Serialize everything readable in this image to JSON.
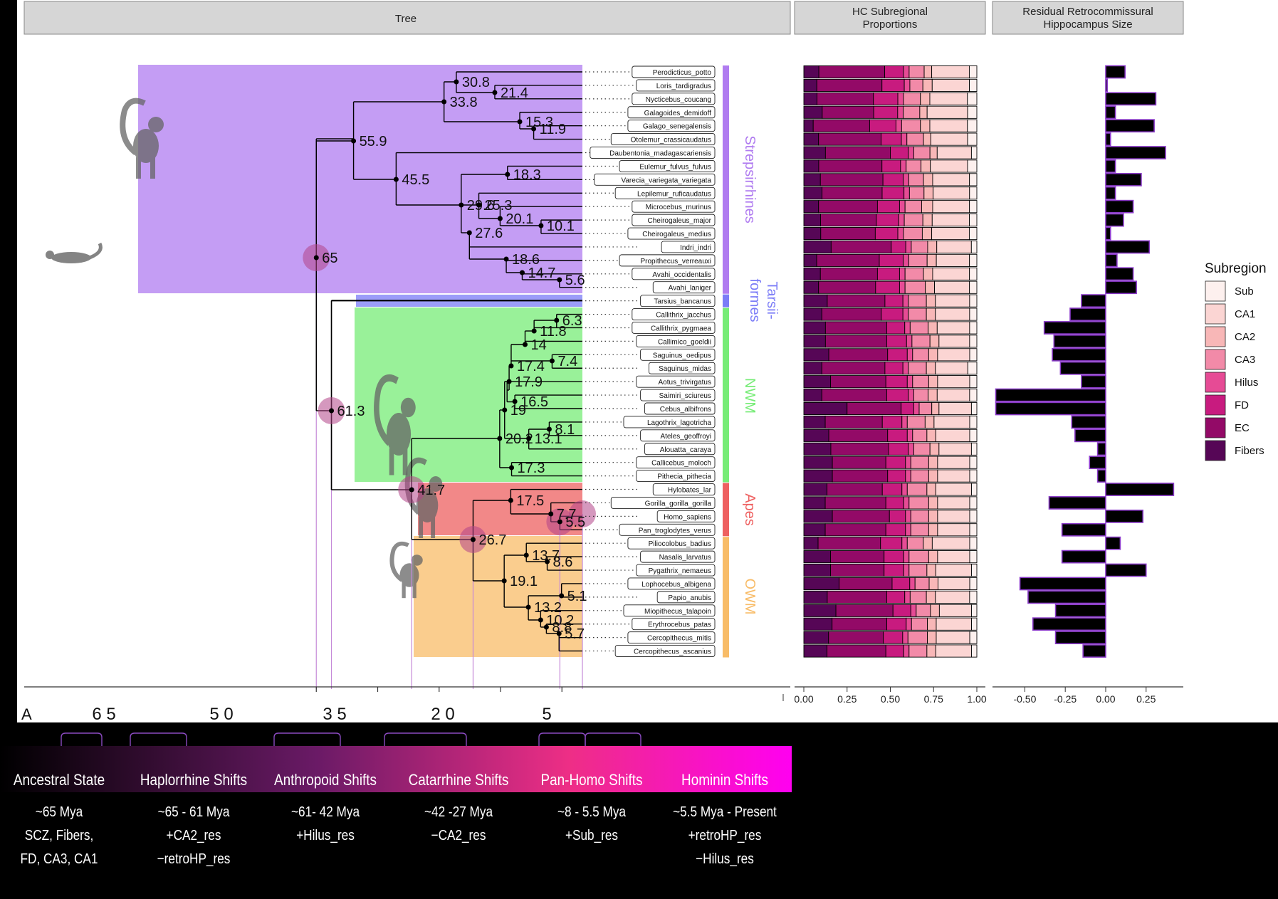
{
  "facet_titles": {
    "tree": "Tree",
    "proportions": "HC Subregional Proportions",
    "residual": "Residual Retrocommissural Hippocampus Size"
  },
  "time_axis": {
    "ticks": [
      "6 5",
      "5 0",
      "3 5",
      "2 0",
      "5"
    ],
    "edge_label": "A"
  },
  "clades": [
    {
      "name": "Strepsirrhines",
      "color": "#b07cf0"
    },
    {
      "name": "Tarsii-formes",
      "color": "#7b7cf7"
    },
    {
      "name": "NWM",
      "color": "#77ec77"
    },
    {
      "name": "Apes",
      "color": "#ee6060"
    },
    {
      "name": "OWM",
      "color": "#f8bc68"
    }
  ],
  "tips": [
    "Perodicticus_potto",
    "Loris_tardigradus",
    "Nycticebus_coucang",
    "Galagoides_demidoff",
    "Galago_senegalensis",
    "Otolemur_crassicaudatus",
    "Daubentonia_madagascariensis",
    "Eulemur_fulvus_fulvus",
    "Varecia_variegata_variegata",
    "Lepilemur_ruficaudatus",
    "Microcebus_murinus",
    "Cheirogaleus_major",
    "Cheirogaleus_medius",
    "Indri_indri",
    "Propithecus_verreauxi",
    "Avahi_occidentalis",
    "Avahi_laniger",
    "Tarsius_bancanus",
    "Callithrix_jacchus",
    "Callithrix_pygmaea",
    "Callimico_goeldii",
    "Saguinus_oedipus",
    "Saguinus_midas",
    "Aotus_trivirgatus",
    "Saimiri_sciureus",
    "Cebus_albifrons",
    "Lagothrix_lagotricha",
    "Ateles_geoffroyi",
    "Alouatta_caraya",
    "Callicebus_moloch",
    "Pithecia_pithecia",
    "Hylobates_lar",
    "Gorilla_gorilla_gorilla",
    "Homo_sapiens",
    "Pan_troglodytes_verus",
    "Piliocolobus_badius",
    "Nasalis_larvatus",
    "Pygathrix_nemaeus",
    "Lophocebus_albigena",
    "Papio_anubis",
    "Miopithecus_talapoin",
    "Erythrocebus_patas",
    "Cercopithecus_mitis",
    "Cercopithecus_ascanius"
  ],
  "node_ages": [
    "65",
    "55.9",
    "33.8",
    "30.8",
    "21.4",
    "15.3",
    "11.9",
    "45.5",
    "18.3",
    "29.6",
    "25.3",
    "20.1",
    "10.1",
    "27.6",
    "18.6",
    "14.7",
    "5.6",
    "61.3",
    "41.7",
    "20.2",
    "19",
    "17.9",
    "17.4",
    "14",
    "11.8",
    "6.3",
    "7.4",
    "16.5",
    "13.1",
    "8.1",
    "17.3",
    "26.7",
    "17.5",
    "7.7",
    "5.5",
    "19.1",
    "13.7",
    "8.6",
    "13.2",
    "5.1",
    "10.2",
    "8.8",
    "5.7"
  ],
  "shifts": [
    {
      "title": "Ancestral State",
      "lines": [
        "~65 Mya",
        "SCZ, Fibers,",
        "FD, CA3, CA1"
      ]
    },
    {
      "title": "Haplorrhine Shifts",
      "lines": [
        "~65 - 61 Mya",
        "+CA2_res",
        "−retroHP_res"
      ]
    },
    {
      "title": "Anthropoid Shifts",
      "lines": [
        "~61- 42 Mya",
        "+Hilus_res"
      ]
    },
    {
      "title": "Catarrhine Shifts",
      "lines": [
        "~42 -27 Mya",
        "−CA2_res"
      ]
    },
    {
      "title": "Pan-Homo Shifts",
      "lines": [
        "~8 - 5.5 Mya",
        "+Sub_res"
      ]
    },
    {
      "title": "Hominin Shifts",
      "lines": [
        "~5.5 Mya - Present",
        "+retroHP_res",
        "−Hilus_res"
      ]
    }
  ],
  "legend": {
    "title": "Subregion",
    "items": [
      {
        "label": "Sub",
        "color": "#fdf0ee"
      },
      {
        "label": "CA1",
        "color": "#fbd5d3"
      },
      {
        "label": "CA2",
        "color": "#f8b7b7"
      },
      {
        "label": "CA3",
        "color": "#f28aa8"
      },
      {
        "label": "Hilus",
        "color": "#e64b95"
      },
      {
        "label": "FD",
        "color": "#c81b7f"
      },
      {
        "label": "EC",
        "color": "#930a67"
      },
      {
        "label": "Fibers",
        "color": "#560656"
      }
    ]
  },
  "chart_data": [
    {
      "type": "bar",
      "title": "HC Subregional Proportions",
      "stacked": true,
      "orientation": "horizontal",
      "xlim": [
        0,
        1
      ],
      "xticks": [
        "0.00",
        "0.25",
        "0.50",
        "0.75",
        "1.00"
      ],
      "series_order": [
        "Fibers",
        "EC",
        "FD",
        "Hilus",
        "CA3",
        "CA2",
        "CA1",
        "Sub"
      ],
      "rows": [
        [
          0.08,
          0.35,
          0.1,
          0.03,
          0.08,
          0.04,
          0.2,
          0.04
        ],
        [
          0.07,
          0.35,
          0.12,
          0.03,
          0.07,
          0.05,
          0.2,
          0.04
        ],
        [
          0.07,
          0.3,
          0.13,
          0.03,
          0.09,
          0.05,
          0.2,
          0.05
        ],
        [
          0.1,
          0.28,
          0.13,
          0.03,
          0.09,
          0.04,
          0.22,
          0.05
        ],
        [
          0.05,
          0.3,
          0.14,
          0.03,
          0.1,
          0.05,
          0.2,
          0.05
        ],
        [
          0.08,
          0.34,
          0.11,
          0.03,
          0.09,
          0.04,
          0.2,
          0.05
        ],
        [
          0.12,
          0.36,
          0.1,
          0.03,
          0.09,
          0.04,
          0.19,
          0.03
        ],
        [
          0.08,
          0.34,
          0.1,
          0.03,
          0.08,
          0.05,
          0.2,
          0.05
        ],
        [
          0.09,
          0.34,
          0.11,
          0.03,
          0.08,
          0.05,
          0.2,
          0.04
        ],
        [
          0.1,
          0.33,
          0.12,
          0.03,
          0.08,
          0.05,
          0.2,
          0.04
        ],
        [
          0.08,
          0.32,
          0.12,
          0.03,
          0.09,
          0.06,
          0.2,
          0.04
        ],
        [
          0.09,
          0.3,
          0.12,
          0.03,
          0.1,
          0.05,
          0.2,
          0.04
        ],
        [
          0.09,
          0.29,
          0.12,
          0.03,
          0.1,
          0.05,
          0.2,
          0.04
        ],
        [
          0.15,
          0.33,
          0.08,
          0.03,
          0.09,
          0.05,
          0.19,
          0.03
        ],
        [
          0.07,
          0.34,
          0.13,
          0.03,
          0.1,
          0.05,
          0.18,
          0.04
        ],
        [
          0.09,
          0.31,
          0.12,
          0.03,
          0.1,
          0.05,
          0.2,
          0.04
        ],
        [
          0.08,
          0.31,
          0.13,
          0.03,
          0.11,
          0.05,
          0.19,
          0.04
        ],
        [
          0.13,
          0.32,
          0.1,
          0.03,
          0.1,
          0.05,
          0.19,
          0.04
        ],
        [
          0.1,
          0.33,
          0.12,
          0.03,
          0.1,
          0.05,
          0.19,
          0.04
        ],
        [
          0.12,
          0.34,
          0.1,
          0.03,
          0.1,
          0.05,
          0.18,
          0.04
        ],
        [
          0.12,
          0.34,
          0.11,
          0.03,
          0.1,
          0.05,
          0.17,
          0.04
        ],
        [
          0.14,
          0.33,
          0.11,
          0.03,
          0.09,
          0.05,
          0.18,
          0.04
        ],
        [
          0.1,
          0.35,
          0.1,
          0.03,
          0.1,
          0.05,
          0.18,
          0.05
        ],
        [
          0.15,
          0.31,
          0.12,
          0.03,
          0.09,
          0.05,
          0.18,
          0.04
        ],
        [
          0.1,
          0.36,
          0.12,
          0.03,
          0.08,
          0.05,
          0.18,
          0.04
        ],
        [
          0.24,
          0.3,
          0.07,
          0.03,
          0.07,
          0.04,
          0.18,
          0.03
        ],
        [
          0.12,
          0.32,
          0.11,
          0.03,
          0.1,
          0.05,
          0.2,
          0.04
        ],
        [
          0.14,
          0.33,
          0.11,
          0.03,
          0.08,
          0.05,
          0.19,
          0.04
        ],
        [
          0.15,
          0.32,
          0.11,
          0.03,
          0.09,
          0.05,
          0.18,
          0.03
        ],
        [
          0.16,
          0.3,
          0.11,
          0.03,
          0.1,
          0.05,
          0.18,
          0.04
        ],
        [
          0.16,
          0.31,
          0.1,
          0.03,
          0.1,
          0.05,
          0.18,
          0.04
        ],
        [
          0.13,
          0.31,
          0.11,
          0.03,
          0.11,
          0.05,
          0.2,
          0.03
        ],
        [
          0.12,
          0.34,
          0.1,
          0.03,
          0.11,
          0.05,
          0.18,
          0.04
        ],
        [
          0.16,
          0.32,
          0.09,
          0.03,
          0.1,
          0.05,
          0.18,
          0.04
        ],
        [
          0.12,
          0.34,
          0.11,
          0.03,
          0.1,
          0.05,
          0.18,
          0.04
        ],
        [
          0.08,
          0.35,
          0.12,
          0.03,
          0.09,
          0.05,
          0.21,
          0.04
        ],
        [
          0.15,
          0.3,
          0.11,
          0.03,
          0.11,
          0.05,
          0.18,
          0.04
        ],
        [
          0.15,
          0.3,
          0.11,
          0.03,
          0.1,
          0.05,
          0.2,
          0.03
        ],
        [
          0.2,
          0.3,
          0.1,
          0.03,
          0.08,
          0.05,
          0.18,
          0.04
        ],
        [
          0.13,
          0.33,
          0.1,
          0.03,
          0.09,
          0.05,
          0.19,
          0.04
        ],
        [
          0.18,
          0.32,
          0.1,
          0.03,
          0.08,
          0.05,
          0.18,
          0.03
        ],
        [
          0.16,
          0.31,
          0.11,
          0.03,
          0.09,
          0.05,
          0.2,
          0.03
        ],
        [
          0.14,
          0.31,
          0.11,
          0.03,
          0.11,
          0.05,
          0.19,
          0.04
        ],
        [
          0.13,
          0.33,
          0.1,
          0.03,
          0.1,
          0.05,
          0.2,
          0.03
        ]
      ]
    },
    {
      "type": "bar",
      "title": "Residual Retrocommissural Hippocampus Size",
      "orientation": "horizontal",
      "xlim": [
        -0.7,
        0.48
      ],
      "xticks": [
        "-0.50",
        "-0.25",
        "0.00",
        "0.25"
      ],
      "values": [
        0.12,
        0.01,
        0.31,
        0.06,
        0.3,
        0.03,
        0.37,
        0.06,
        0.22,
        0.06,
        0.17,
        0.11,
        0.03,
        0.27,
        0.07,
        0.17,
        0.19,
        -0.15,
        -0.22,
        -0.38,
        -0.32,
        -0.33,
        -0.28,
        -0.15,
        -0.68,
        -0.68,
        -0.21,
        -0.19,
        -0.05,
        -0.1,
        -0.05,
        0.42,
        -0.35,
        0.23,
        -0.27,
        0.09,
        -0.27,
        0.25,
        -0.53,
        -0.48,
        -0.31,
        -0.45,
        -0.31,
        -0.14
      ]
    }
  ]
}
